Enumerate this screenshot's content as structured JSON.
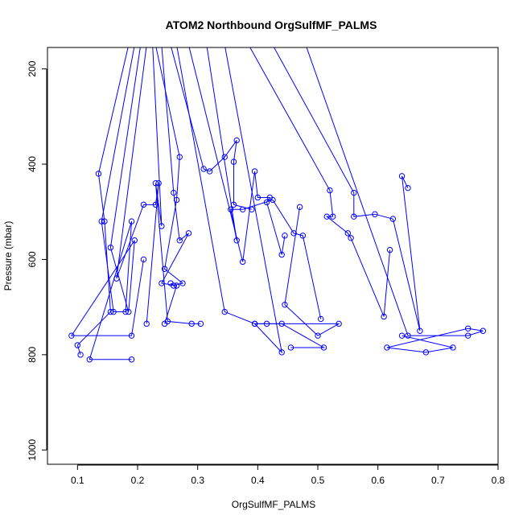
{
  "chart_data": {
    "type": "line",
    "title": "ATOM2 Northbound OrgSulfMF_PALMS",
    "xlabel": "OrgSulfMF_PALMS",
    "ylabel": "Pressure (mbar)",
    "xlim": [
      0.05,
      0.8
    ],
    "ylim": [
      1030,
      155
    ],
    "y_reversed": true,
    "x_ticks": [
      0.1,
      0.2,
      0.3,
      0.4,
      0.5,
      0.6,
      0.7,
      0.8
    ],
    "x_tick_labels": [
      "0.1",
      "0.2",
      "0.3",
      "0.4",
      "0.5",
      "0.6",
      "0.7",
      "0.8"
    ],
    "y_ticks": [
      200,
      400,
      600,
      800,
      1000
    ],
    "y_tick_labels": [
      "200",
      "400",
      "600",
      "800",
      "1000"
    ],
    "series_color": "#0000ff",
    "marker": "open-circle",
    "segments": [
      [
        [
          0.185,
          150
        ],
        [
          0.135,
          420
        ],
        [
          0.145,
          520
        ],
        [
          0.155,
          710
        ],
        [
          0.1,
          780
        ],
        [
          0.105,
          800
        ]
      ],
      [
        [
          0.195,
          150
        ],
        [
          0.14,
          520
        ],
        [
          0.16,
          710
        ],
        [
          0.18,
          710
        ],
        [
          0.19,
          520
        ],
        [
          0.12,
          810
        ],
        [
          0.19,
          810
        ]
      ],
      [
        [
          0.205,
          150
        ],
        [
          0.155,
          575
        ],
        [
          0.185,
          710
        ],
        [
          0.195,
          560
        ],
        [
          0.09,
          760
        ],
        [
          0.19,
          760
        ],
        [
          0.21,
          600
        ]
      ],
      [
        [
          0.215,
          150
        ],
        [
          0.165,
          640
        ],
        [
          0.21,
          485
        ],
        [
          0.23,
          485
        ],
        [
          0.235,
          440
        ],
        [
          0.215,
          735
        ]
      ],
      [
        [
          0.225,
          150
        ],
        [
          0.24,
          530
        ],
        [
          0.23,
          440
        ],
        [
          0.25,
          730
        ],
        [
          0.29,
          735
        ],
        [
          0.305,
          735
        ]
      ],
      [
        [
          0.23,
          150
        ],
        [
          0.27,
          385
        ],
        [
          0.265,
          475
        ],
        [
          0.245,
          620
        ],
        [
          0.275,
          650
        ],
        [
          0.26,
          655
        ],
        [
          0.255,
          650
        ]
      ],
      [
        [
          0.24,
          150
        ],
        [
          0.26,
          460
        ],
        [
          0.27,
          560
        ],
        [
          0.285,
          545
        ],
        [
          0.24,
          650
        ],
        [
          0.265,
          655
        ],
        [
          0.245,
          735
        ]
      ],
      [
        [
          0.255,
          150
        ],
        [
          0.31,
          410
        ],
        [
          0.32,
          415
        ],
        [
          0.345,
          385
        ],
        [
          0.365,
          350
        ],
        [
          0.36,
          395
        ],
        [
          0.36,
          485
        ],
        [
          0.39,
          495
        ]
      ],
      [
        [
          0.265,
          150
        ],
        [
          0.345,
          710
        ],
        [
          0.395,
          735
        ],
        [
          0.44,
          735
        ],
        [
          0.51,
          785
        ],
        [
          0.455,
          785
        ]
      ],
      [
        [
          0.285,
          150
        ],
        [
          0.375,
          605
        ],
        [
          0.395,
          415
        ],
        [
          0.4,
          470
        ],
        [
          0.42,
          470
        ],
        [
          0.415,
          480
        ],
        [
          0.44,
          590
        ],
        [
          0.445,
          550
        ]
      ],
      [
        [
          0.315,
          150
        ],
        [
          0.365,
          560
        ],
        [
          0.355,
          495
        ],
        [
          0.375,
          495
        ],
        [
          0.425,
          475
        ],
        [
          0.46,
          545
        ],
        [
          0.475,
          550
        ],
        [
          0.505,
          725
        ]
      ],
      [
        [
          0.345,
          150
        ],
        [
          0.44,
          795
        ],
        [
          0.395,
          735
        ],
        [
          0.415,
          735
        ],
        [
          0.535,
          735
        ],
        [
          0.5,
          760
        ],
        [
          0.445,
          695
        ],
        [
          0.47,
          490
        ]
      ],
      [
        [
          0.385,
          150
        ],
        [
          0.52,
          455
        ],
        [
          0.525,
          510
        ],
        [
          0.515,
          510
        ],
        [
          0.55,
          545
        ],
        [
          0.555,
          555
        ],
        [
          0.61,
          720
        ],
        [
          0.62,
          580
        ]
      ],
      [
        [
          0.425,
          150
        ],
        [
          0.56,
          460
        ],
        [
          0.56,
          510
        ],
        [
          0.595,
          505
        ],
        [
          0.625,
          515
        ],
        [
          0.67,
          750
        ],
        [
          0.64,
          425
        ],
        [
          0.65,
          450
        ]
      ],
      [
        [
          0.48,
          150
        ],
        [
          0.65,
          760
        ],
        [
          0.75,
          760
        ],
        [
          0.775,
          750
        ],
        [
          0.75,
          745
        ],
        [
          0.615,
          785
        ],
        [
          0.68,
          795
        ],
        [
          0.725,
          785
        ],
        [
          0.64,
          760
        ]
      ]
    ]
  }
}
